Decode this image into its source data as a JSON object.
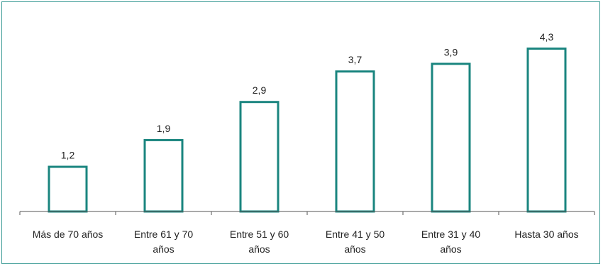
{
  "chart_data": {
    "type": "bar",
    "title": "",
    "xlabel": "",
    "ylabel": "",
    "categories": [
      "Más de 70 años",
      "Entre 61 y 70 años",
      "Entre 51 y 60 años",
      "Entre 41 y 50 años",
      "Entre 31 y 40 años",
      "Hasta 30 años"
    ],
    "values": [
      1.2,
      1.9,
      2.9,
      3.7,
      3.9,
      4.3
    ],
    "value_labels": [
      "1,2",
      "1,9",
      "2,9",
      "3,7",
      "3,9",
      "4,3"
    ],
    "ylim": [
      0,
      4.3
    ],
    "grid": false,
    "legend": "none",
    "colors": {
      "bar_stroke": "#1a857f",
      "bar_fill": "#ffffff",
      "axis": "#555555",
      "frame": "#3a9a94"
    }
  }
}
